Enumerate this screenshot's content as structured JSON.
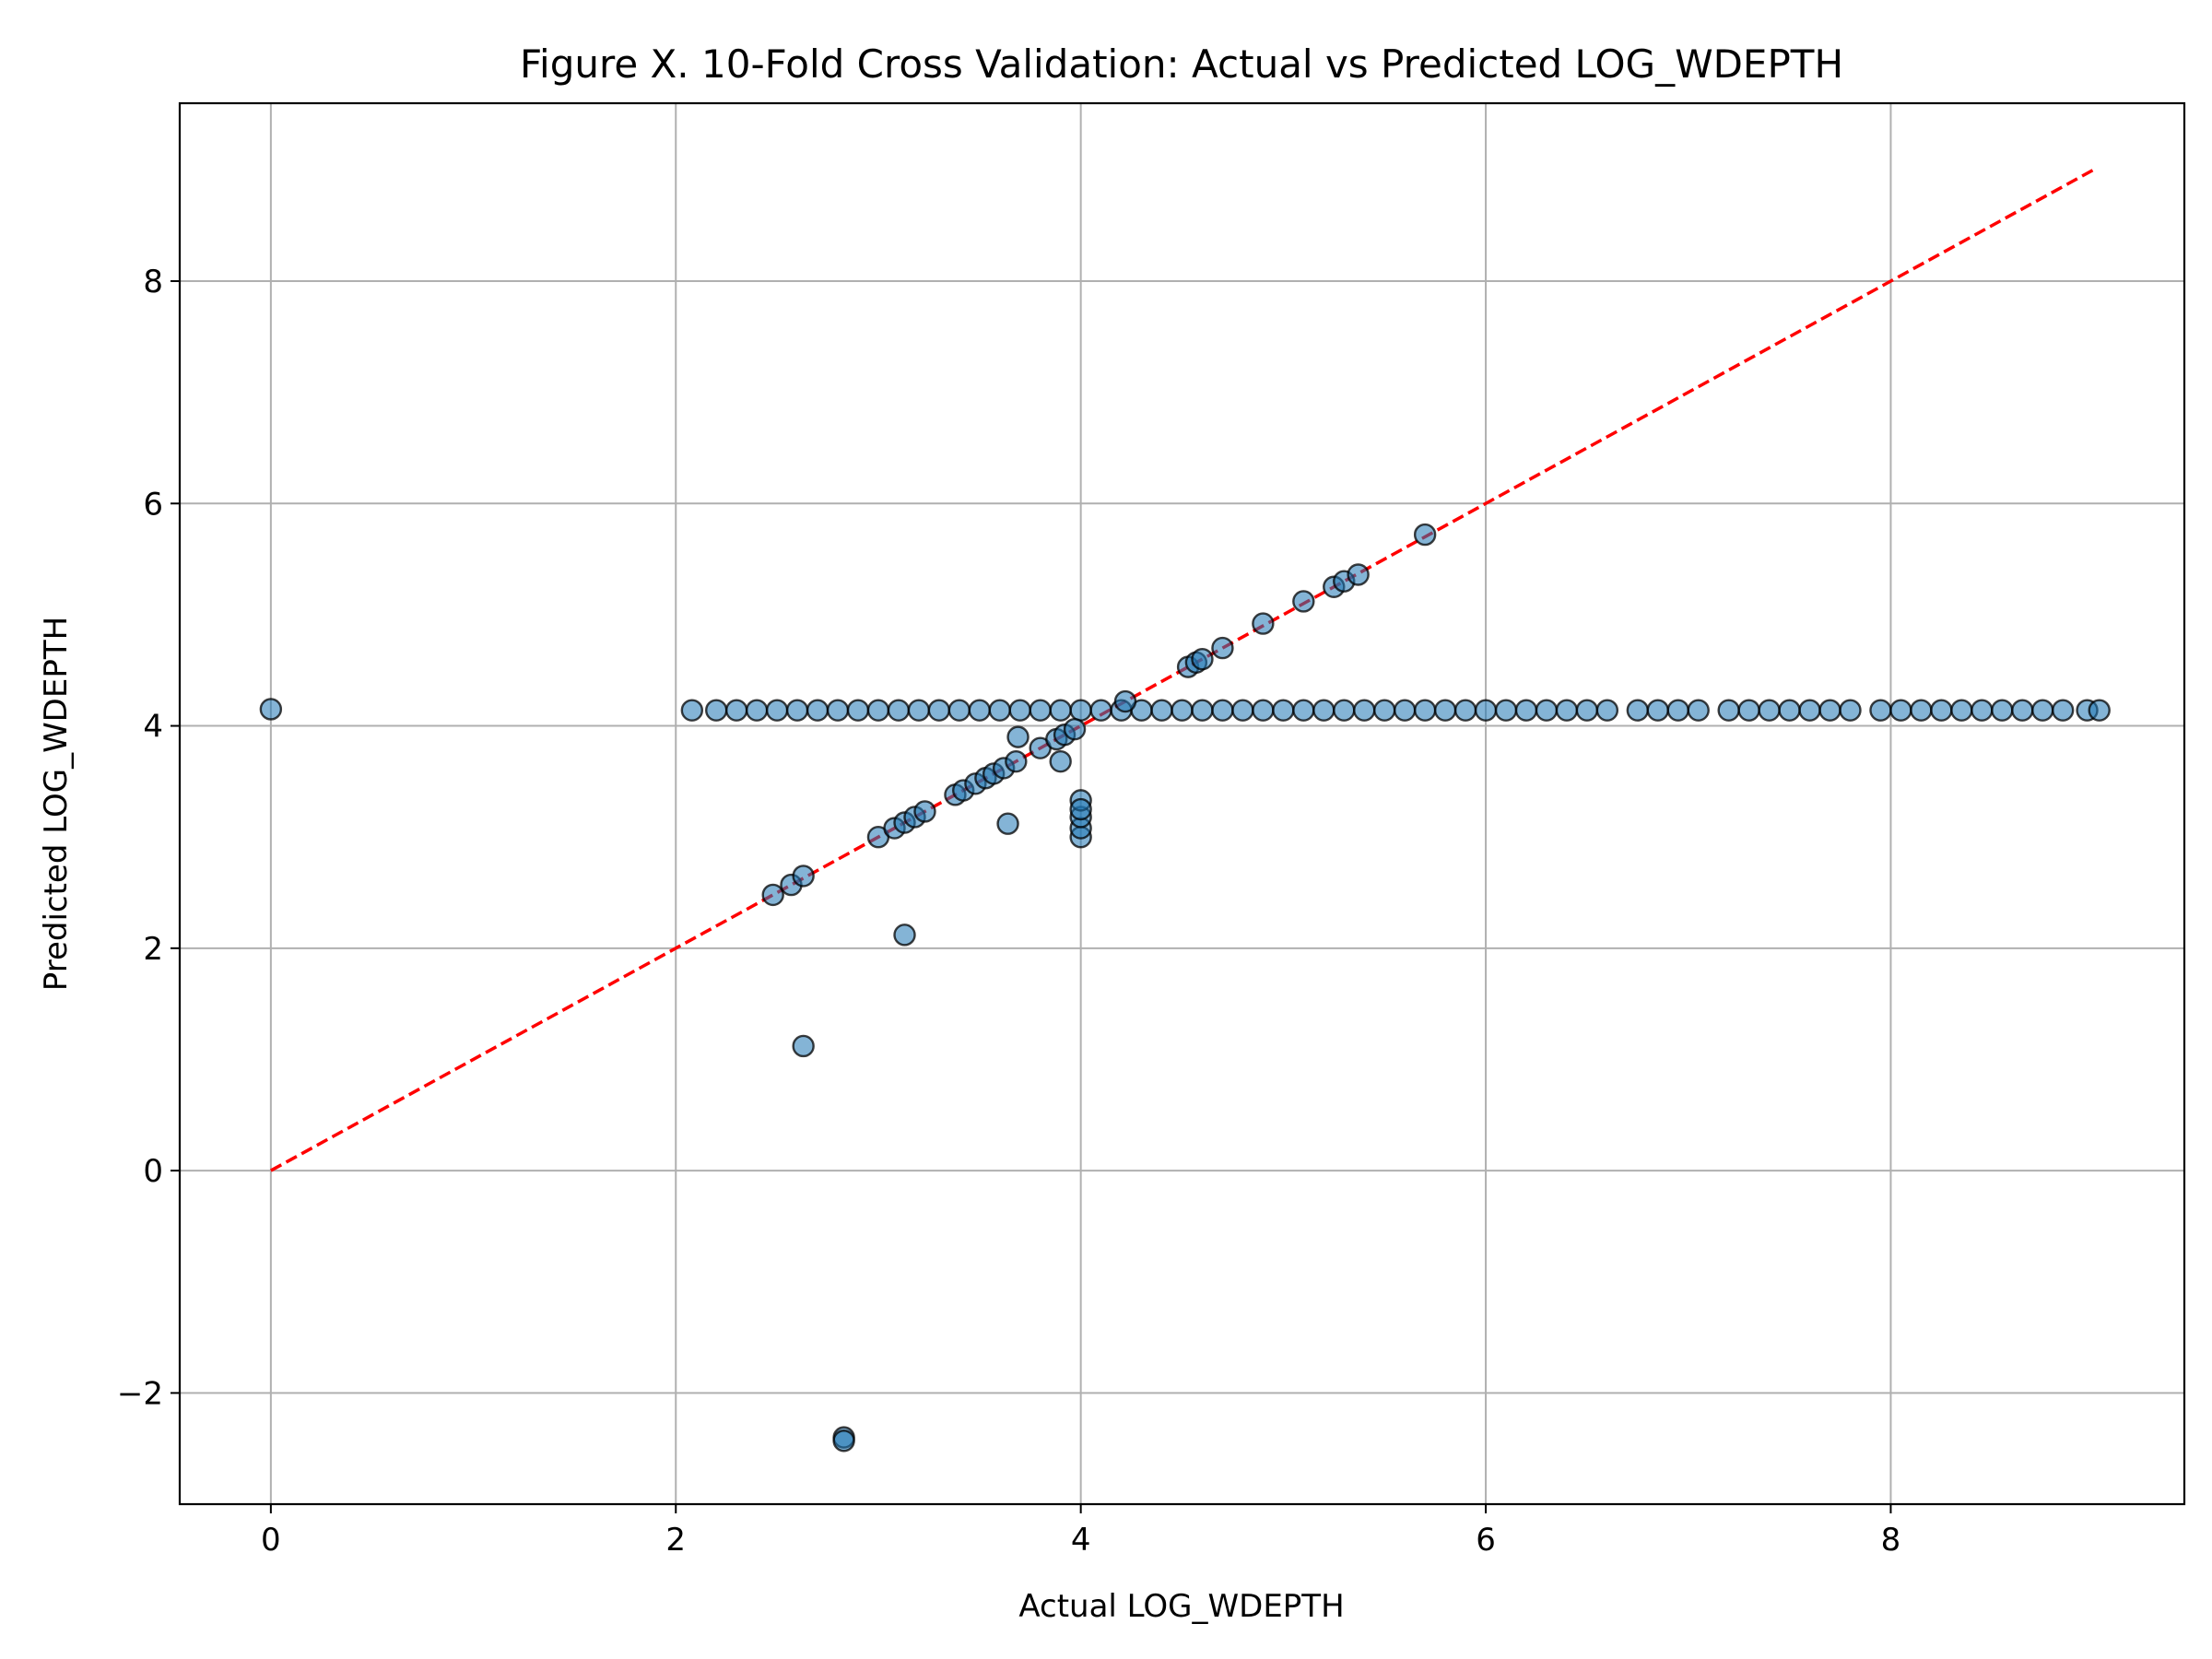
{
  "chart_data": {
    "type": "scatter",
    "title": "Figure X. 10-Fold Cross Validation: Actual vs Predicted LOG_WDEPTH",
    "xlabel": "Actual LOG_WDEPTH",
    "ylabel": "Predicted LOG_WDEPTH",
    "xlim": [
      -0.45,
      9.45
    ],
    "ylim": [
      -3.0,
      9.6
    ],
    "xticks": [
      0,
      2,
      4,
      6,
      8
    ],
    "xtick_labels": [
      "0",
      "2",
      "4",
      "6",
      "8"
    ],
    "yticks": [
      -2,
      0,
      2,
      4,
      6,
      8
    ],
    "ytick_labels": [
      "−2",
      "0",
      "2",
      "4",
      "6",
      "8"
    ],
    "grid": true,
    "legend": "none",
    "marker_color": "#1f77b4",
    "marker_edge_color": "#000000",
    "reference_line": {
      "style": "dashed",
      "color": "#ff0000",
      "x": [
        0,
        9.0
      ],
      "y": [
        0,
        9.0
      ]
    },
    "points": {
      "flat_band_y": 4.14,
      "flat_band_x": [
        2.08,
        2.2,
        2.3,
        2.4,
        2.5,
        2.6,
        2.7,
        2.8,
        2.9,
        3.0,
        3.1,
        3.2,
        3.3,
        3.4,
        3.5,
        3.6,
        3.7,
        3.8,
        3.9,
        4.0,
        4.1,
        4.2,
        4.3,
        4.4,
        4.5,
        4.6,
        4.7,
        4.8,
        4.9,
        5.0,
        5.1,
        5.2,
        5.3,
        5.4,
        5.5,
        5.6,
        5.7,
        5.8,
        5.9,
        6.0,
        6.1,
        6.2,
        6.3,
        6.4,
        6.5,
        6.6,
        6.75,
        6.85,
        6.95,
        7.05,
        7.2,
        7.3,
        7.4,
        7.5,
        7.6,
        7.7,
        7.8,
        7.95,
        8.05,
        8.15,
        8.25,
        8.35,
        8.45,
        8.55,
        8.65,
        8.75,
        8.85,
        8.97,
        9.03
      ],
      "diagonal_x": [
        2.48,
        2.57,
        2.63,
        3.0,
        3.08,
        3.13,
        3.18,
        3.23,
        3.38,
        3.42,
        3.48,
        3.53,
        3.57,
        3.62,
        3.68,
        3.8,
        3.88,
        3.92,
        3.97,
        4.22,
        4.53,
        4.57,
        4.6,
        4.7,
        4.9,
        5.1,
        5.25,
        5.3,
        5.37,
        5.7
      ],
      "diagonal_y": [
        2.48,
        2.57,
        2.65,
        3.0,
        3.08,
        3.13,
        3.18,
        3.23,
        3.38,
        3.42,
        3.48,
        3.53,
        3.57,
        3.62,
        3.68,
        3.8,
        3.88,
        3.92,
        3.97,
        4.22,
        4.53,
        4.57,
        4.6,
        4.7,
        4.92,
        5.12,
        5.25,
        5.3,
        5.36,
        5.72
      ],
      "outliers_x": [
        0.0,
        2.63,
        2.83,
        2.83,
        3.13,
        3.64,
        3.69,
        3.9,
        4.0,
        4.0,
        4.0,
        4.0,
        4.0
      ],
      "outliers_y": [
        4.15,
        1.12,
        -2.4,
        -2.43,
        2.12,
        3.12,
        3.9,
        3.68,
        3.0,
        3.08,
        3.18,
        3.33,
        3.25
      ]
    }
  }
}
